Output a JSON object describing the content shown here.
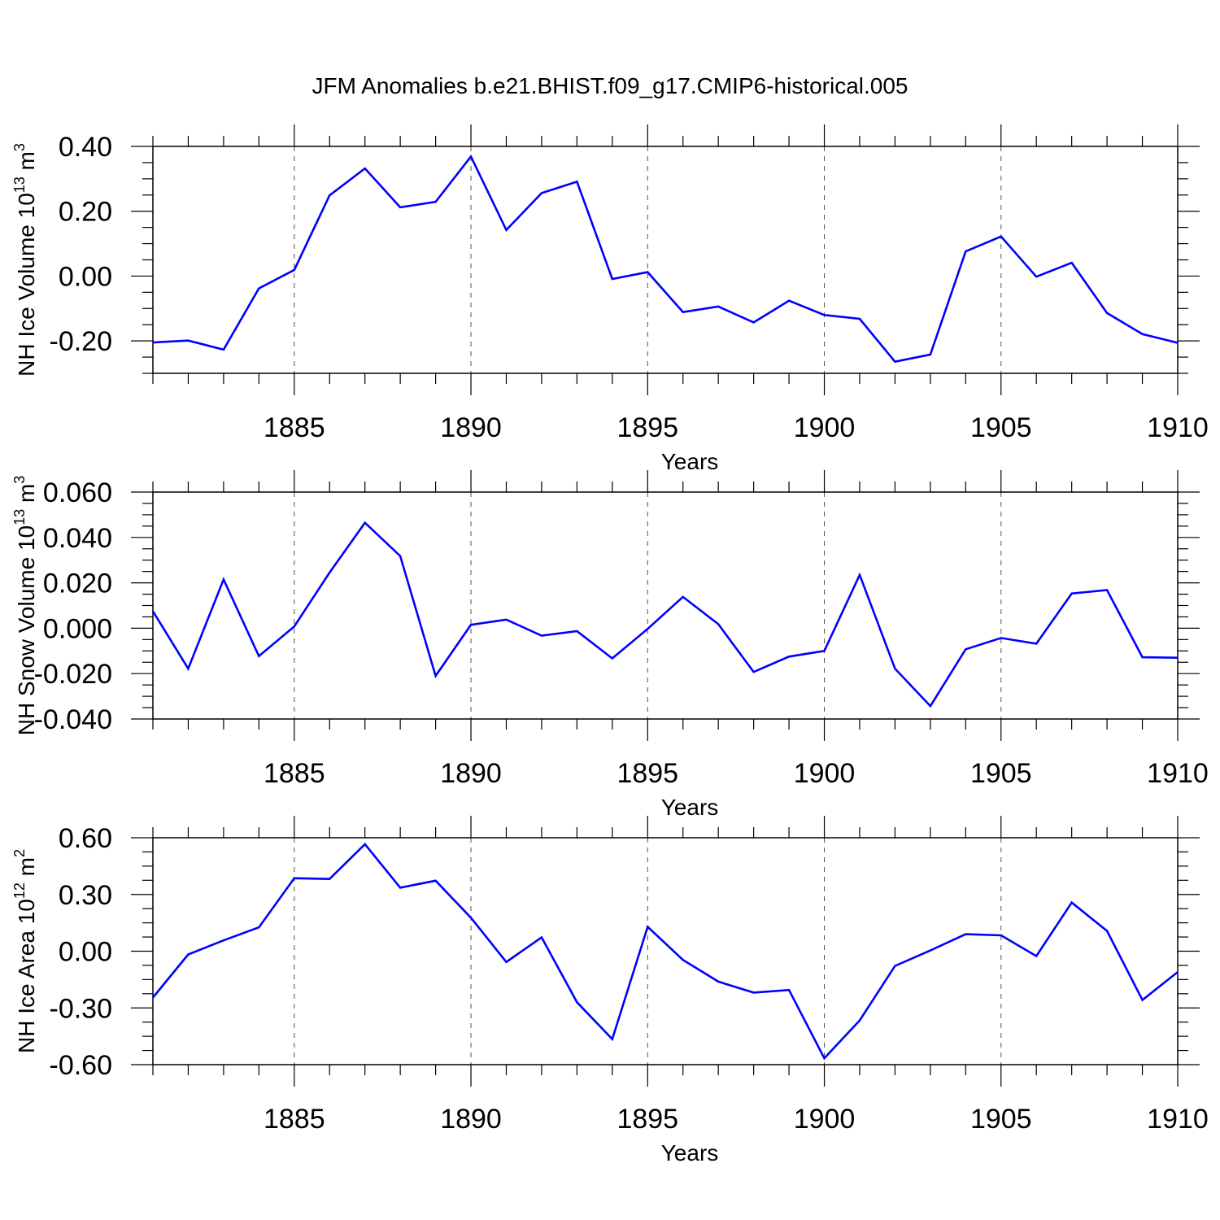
{
  "title": "JFM Anomalies b.e21.BHIST.f09_g17.CMIP6-historical.005",
  "chart_data": [
    {
      "type": "line",
      "name": "ice-volume",
      "xlabel": "Years",
      "ylabel": "NH Ice Volume 10",
      "ylabel_exp": "13",
      "ylabel_unit": "m",
      "ylabel_unit_exp": "3",
      "xlim": [
        1881,
        1910
      ],
      "ylim": [
        -0.3,
        0.4
      ],
      "yticks": [
        -0.2,
        0.0,
        0.2,
        0.4
      ],
      "ytick_labels": [
        "-0.20",
        "0.00",
        "0.20",
        "0.40"
      ],
      "xticks": [
        1885,
        1890,
        1895,
        1900,
        1905,
        1910
      ],
      "xtick_labels": [
        "1885",
        "1890",
        "1895",
        "1900",
        "1905",
        "1910"
      ],
      "color": "#0000ff",
      "x": [
        1881,
        1882,
        1883,
        1884,
        1885,
        1886,
        1887,
        1888,
        1889,
        1890,
        1891,
        1892,
        1893,
        1894,
        1895,
        1896,
        1897,
        1898,
        1899,
        1900,
        1901,
        1902,
        1903,
        1904,
        1905,
        1906,
        1907,
        1908,
        1909,
        1910
      ],
      "values": [
        -0.205,
        -0.199,
        -0.227,
        -0.038,
        0.019,
        0.249,
        0.332,
        0.212,
        0.229,
        0.369,
        0.142,
        0.256,
        0.291,
        -0.009,
        0.012,
        -0.111,
        -0.094,
        -0.143,
        -0.076,
        -0.12,
        -0.132,
        -0.264,
        -0.242,
        0.076,
        0.122,
        -0.002,
        0.041,
        -0.114,
        -0.179,
        -0.206
      ]
    },
    {
      "type": "line",
      "name": "snow-volume",
      "xlabel": "Years",
      "ylabel": "NH Snow Volume 10",
      "ylabel_exp": "13",
      "ylabel_unit": "m",
      "ylabel_unit_exp": "3",
      "xlim": [
        1881,
        1910
      ],
      "ylim": [
        -0.04,
        0.06
      ],
      "yticks": [
        -0.04,
        -0.02,
        0.0,
        0.02,
        0.04,
        0.06
      ],
      "ytick_labels": [
        "-0.040",
        "-0.020",
        "0.000",
        "0.020",
        "0.040",
        "0.060"
      ],
      "xticks": [
        1885,
        1890,
        1895,
        1900,
        1905,
        1910
      ],
      "xtick_labels": [
        "1885",
        "1890",
        "1895",
        "1900",
        "1905",
        "1910"
      ],
      "color": "#0000ff",
      "x": [
        1881,
        1882,
        1883,
        1884,
        1885,
        1886,
        1887,
        1888,
        1889,
        1890,
        1891,
        1892,
        1893,
        1894,
        1895,
        1896,
        1897,
        1898,
        1899,
        1900,
        1901,
        1902,
        1903,
        1904,
        1905,
        1906,
        1907,
        1908,
        1909,
        1910
      ],
      "values": [
        0.0075,
        -0.0178,
        0.0215,
        -0.0123,
        0.0008,
        0.0245,
        0.0465,
        0.0318,
        -0.021,
        0.0015,
        0.0038,
        -0.0033,
        -0.0013,
        -0.0133,
        -0.0003,
        0.0138,
        0.0018,
        -0.0193,
        -0.0125,
        -0.01,
        0.0235,
        -0.0178,
        -0.0343,
        -0.0093,
        -0.0043,
        -0.0068,
        0.0153,
        0.0168,
        -0.0128,
        -0.013
      ]
    },
    {
      "type": "line",
      "name": "ice-area",
      "xlabel": "Years",
      "ylabel": "NH Ice Area 10",
      "ylabel_exp": "12",
      "ylabel_unit": "m",
      "ylabel_unit_exp": "2",
      "xlim": [
        1881,
        1910
      ],
      "ylim": [
        -0.6,
        0.6
      ],
      "yticks": [
        -0.6,
        -0.3,
        0.0,
        0.3,
        0.6
      ],
      "ytick_labels": [
        "-0.60",
        "-0.30",
        "0.00",
        "0.30",
        "0.60"
      ],
      "xticks": [
        1885,
        1890,
        1895,
        1900,
        1905,
        1910
      ],
      "xtick_labels": [
        "1885",
        "1890",
        "1895",
        "1900",
        "1905",
        "1910"
      ],
      "color": "#0000ff",
      "x": [
        1881,
        1882,
        1883,
        1884,
        1885,
        1886,
        1887,
        1888,
        1889,
        1890,
        1891,
        1892,
        1893,
        1894,
        1895,
        1896,
        1897,
        1898,
        1899,
        1900,
        1901,
        1902,
        1903,
        1904,
        1905,
        1906,
        1907,
        1908,
        1909,
        1910
      ],
      "values": [
        -0.245,
        -0.017,
        0.057,
        0.126,
        0.386,
        0.382,
        0.566,
        0.336,
        0.373,
        0.177,
        -0.057,
        0.073,
        -0.27,
        -0.465,
        0.129,
        -0.046,
        -0.161,
        -0.219,
        -0.205,
        -0.566,
        -0.366,
        -0.078,
        0.004,
        0.09,
        0.084,
        -0.026,
        0.257,
        0.107,
        -0.258,
        -0.11
      ]
    }
  ]
}
